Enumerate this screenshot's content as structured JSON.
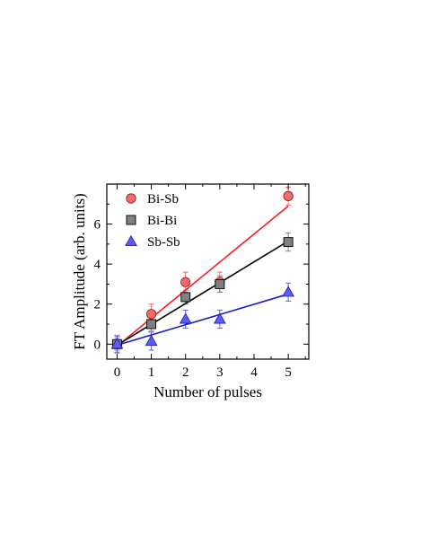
{
  "chart_data": {
    "type": "scatter",
    "title": "",
    "xlabel": "Number of pulses",
    "ylabel": "FT Amplitude (arb. units)",
    "xlim": [
      -0.3,
      5.6
    ],
    "ylim": [
      -0.75,
      8.0
    ],
    "xticks": [
      0,
      1,
      2,
      3,
      4,
      5
    ],
    "yticks": [
      0,
      2,
      4,
      6
    ],
    "grid": false,
    "legend_position": "top-left",
    "series": [
      {
        "name": "Bi-Sb",
        "marker": "circle",
        "color": "#f26b6b",
        "line_color": "#ff1a1a",
        "x": [
          0,
          1,
          2,
          3,
          5
        ],
        "y": [
          0.0,
          1.5,
          3.1,
          3.1,
          7.4
        ],
        "err": [
          0.45,
          0.5,
          0.5,
          0.5,
          0.45
        ],
        "fit": [
          [
            0,
            -0.1
          ],
          [
            5,
            6.9
          ]
        ]
      },
      {
        "name": "Bi-Bi",
        "marker": "square",
        "color": "#808080",
        "line_color": "#000000",
        "x": [
          0,
          1,
          2,
          3,
          5
        ],
        "y": [
          0.0,
          1.0,
          2.35,
          3.0,
          5.1
        ],
        "err": [
          0.3,
          0.35,
          0.35,
          0.4,
          0.45
        ],
        "fit": [
          [
            0,
            -0.05
          ],
          [
            5,
            5.15
          ]
        ]
      },
      {
        "name": "Sb-Sb",
        "marker": "triangle",
        "color": "#5b5bff",
        "line_color": "#1a1acc",
        "x": [
          0,
          1,
          2,
          3,
          5
        ],
        "y": [
          0.0,
          0.15,
          1.25,
          1.25,
          2.6
        ],
        "err": [
          0.4,
          0.45,
          0.45,
          0.45,
          0.45
        ],
        "fit": [
          [
            0,
            -0.05
          ],
          [
            5,
            2.5
          ]
        ]
      }
    ]
  }
}
